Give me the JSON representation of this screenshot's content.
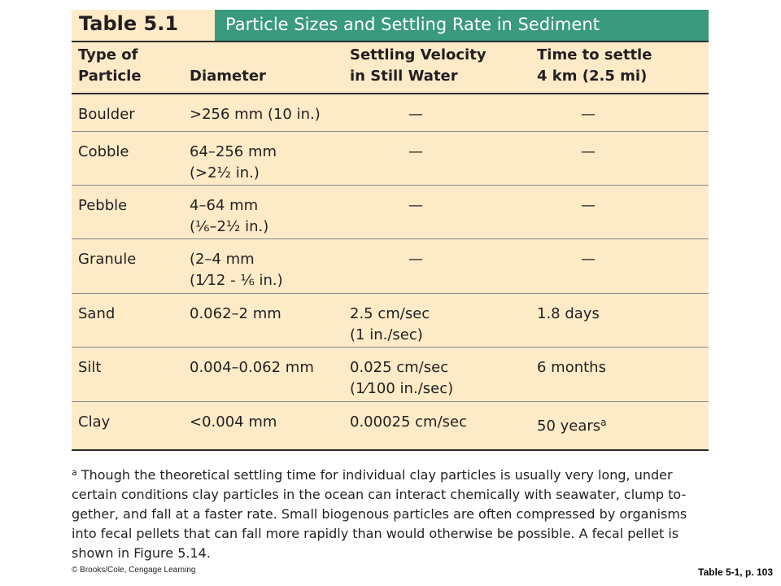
{
  "table": {
    "label": "Table 5.1",
    "caption": "Particle Sizes and Settling Rate in Sediment",
    "colors": {
      "background": "#fdebc8",
      "caption_bar": "#3a9a7e",
      "rule": "#2e2e2e"
    },
    "headers": [
      [
        "Type of",
        "Particle"
      ],
      [
        "Diameter"
      ],
      [
        "Settling Velocity",
        "in Still Water"
      ],
      [
        "Time to settle",
        "4 km (2.5 mi)"
      ]
    ],
    "rows": [
      {
        "type": "Boulder",
        "diameter": [
          ">256 mm (10 in.)"
        ],
        "velocity": [
          "—"
        ],
        "time": "—"
      },
      {
        "type": "Cobble",
        "diameter": [
          "64–256 mm",
          "(>2½ in.)"
        ],
        "velocity": [
          "—"
        ],
        "time": "—"
      },
      {
        "type": "Pebble",
        "diameter": [
          "4–64 mm",
          "(⅙–2½ in.)"
        ],
        "velocity": [
          "—"
        ],
        "time": "—"
      },
      {
        "type": "Granule",
        "diameter": [
          "(2–4 mm",
          "(1⁄12 - ⅙ in.)"
        ],
        "velocity": [
          "—"
        ],
        "time": "—"
      },
      {
        "type": "Sand",
        "diameter": [
          "0.062–2 mm"
        ],
        "velocity": [
          "2.5 cm/sec",
          "(1 in./sec)"
        ],
        "time": "1.8 days"
      },
      {
        "type": "Silt",
        "diameter": [
          "0.004–0.062 mm"
        ],
        "velocity": [
          "0.025 cm/sec",
          "(1⁄100 in./sec)"
        ],
        "time": "6 months"
      },
      {
        "type": "Clay",
        "diameter": [
          "<0.004 mm"
        ],
        "velocity": [
          "0.00025 cm/sec"
        ],
        "time": "50 years",
        "time_mark": "a"
      }
    ]
  },
  "footnote": {
    "mark": "a",
    "lines": [
      "Though the theoretical settling time for individual clay particles is usually very long, under",
      "certain conditions clay particles in the ocean can interact chemically with seawater, clump to-",
      "gether, and fall at a faster rate. Small biogenous particles are often compressed by organisms",
      "into fecal pellets that can fall more rapidly than would otherwise be possible. A fecal pellet is",
      "shown in Figure 5.14."
    ]
  },
  "copyright": "© Brooks/Cole, Cengage Learning",
  "source_ref": "Table 5-1, p. 103"
}
